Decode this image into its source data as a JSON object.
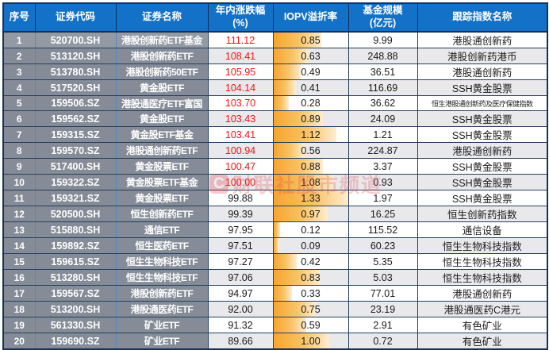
{
  "chart_data": {
    "type": "table",
    "columns": [
      {
        "key": "no",
        "line1": "序号",
        "line2": ""
      },
      {
        "key": "code",
        "line1": "证券代码",
        "line2": ""
      },
      {
        "key": "name",
        "line1": "证券名称",
        "line2": ""
      },
      {
        "key": "chg",
        "line1": "年内涨跌幅",
        "line2": "(%)"
      },
      {
        "key": "iopv",
        "line1": "IOPV溢折率",
        "line2": ""
      },
      {
        "key": "scale",
        "line1": "基金规模",
        "line2": "(亿元)"
      },
      {
        "key": "index",
        "line1": "跟踪指数名称",
        "line2": ""
      }
    ],
    "iopv_bar_max": 1.33,
    "red_threshold": 100,
    "rows": [
      {
        "no": "1",
        "code": "520700.SH",
        "name": "港股创新药ETF基金",
        "chg": "111.12",
        "iopv": "0.85",
        "scale": "9.99",
        "index": "港股通创新药"
      },
      {
        "no": "2",
        "code": "513120.SH",
        "name": "港股创新药ETF",
        "chg": "108.41",
        "iopv": "0.63",
        "scale": "248.88",
        "index": "港股创新药港币"
      },
      {
        "no": "3",
        "code": "513780.SH",
        "name": "港股创新药50ETF",
        "chg": "105.95",
        "iopv": "0.49",
        "scale": "36.51",
        "index": "港股通创新药"
      },
      {
        "no": "4",
        "code": "517520.SH",
        "name": "黄金股ETF",
        "chg": "104.14",
        "iopv": "0.41",
        "scale": "116.69",
        "index": "SSH黄金股票"
      },
      {
        "no": "5",
        "code": "159506.SZ",
        "name": "港股通医疗ETF富国",
        "chg": "103.70",
        "iopv": "0.28",
        "scale": "36.62",
        "index": "恒生港股通创新药及医疗保健指数"
      },
      {
        "no": "6",
        "code": "159562.SZ",
        "name": "黄金股ETF",
        "chg": "103.43",
        "iopv": "0.89",
        "scale": "24.09",
        "index": "SSH黄金股票"
      },
      {
        "no": "7",
        "code": "159315.SZ",
        "name": "黄金股ETF基金",
        "chg": "103.41",
        "iopv": "1.12",
        "scale": "1.21",
        "index": "SSH黄金股票"
      },
      {
        "no": "8",
        "code": "159570.SZ",
        "name": "港股通创新药ETF",
        "chg": "100.94",
        "iopv": "0.56",
        "scale": "224.87",
        "index": "港股通创新药"
      },
      {
        "no": "9",
        "code": "517400.SH",
        "name": "黄金股票ETF",
        "chg": "100.47",
        "iopv": "0.88",
        "scale": "3.37",
        "index": "SSH黄金股票"
      },
      {
        "no": "10",
        "code": "159322.SZ",
        "name": "黄金股票ETF基金",
        "chg": "100.00",
        "iopv": "1.08",
        "scale": "0.93",
        "index": "SSH黄金股票"
      },
      {
        "no": "11",
        "code": "159321.SZ",
        "name": "黄金股票ETF",
        "chg": "99.88",
        "iopv": "1.33",
        "scale": "1.97",
        "index": "SSH黄金股票"
      },
      {
        "no": "12",
        "code": "520500.SH",
        "name": "恒生创新药ETF",
        "chg": "99.39",
        "iopv": "0.97",
        "scale": "16.25",
        "index": "恒生创新药指数"
      },
      {
        "no": "13",
        "code": "515880.SH",
        "name": "通信ETF",
        "chg": "97.95",
        "iopv": "0.12",
        "scale": "115.52",
        "index": "通信设备"
      },
      {
        "no": "14",
        "code": "159892.SZ",
        "name": "恒生医药ETF",
        "chg": "97.51",
        "iopv": "0.09",
        "scale": "60.23",
        "index": "恒生生物科技指数"
      },
      {
        "no": "15",
        "code": "159615.SZ",
        "name": "恒生生物科技ETF",
        "chg": "97.27",
        "iopv": "0.42",
        "scale": "5.35",
        "index": "恒生生物科技指数"
      },
      {
        "no": "16",
        "code": "513280.SH",
        "name": "恒生生物科技ETF",
        "chg": "97.06",
        "iopv": "0.83",
        "scale": "5.03",
        "index": "恒生生物科技指数"
      },
      {
        "no": "17",
        "code": "159567.SZ",
        "name": "港股创新药ETF",
        "chg": "94.97",
        "iopv": "0.33",
        "scale": "77.01",
        "index": "港股通创新药"
      },
      {
        "no": "18",
        "code": "513200.SH",
        "name": "港股通医药ETF",
        "chg": "92.00",
        "iopv": "0.75",
        "scale": "23.19",
        "index": "港股通医药C港元"
      },
      {
        "no": "19",
        "code": "561330.SH",
        "name": "矿业ETF",
        "chg": "91.32",
        "iopv": "0.59",
        "scale": "2.91",
        "index": "有色矿业"
      },
      {
        "no": "20",
        "code": "159690.SZ",
        "name": "矿业ETF",
        "chg": "89.66",
        "iopv": "1.00",
        "scale": "0.72",
        "index": "有色矿业"
      }
    ]
  },
  "colors": {
    "header_bg": "#1371c8",
    "gray_column_bg": "#858c97",
    "alt_row_bg": "#e9e9ec",
    "positive_red": "#fb0f0f",
    "iopv_bar_orange": "#f6a52f",
    "border_dark": "#24405f",
    "border_blue": "#5587c3"
  },
  "watermark": {
    "logo_letter": "C",
    "text": "财联社股市频道"
  }
}
